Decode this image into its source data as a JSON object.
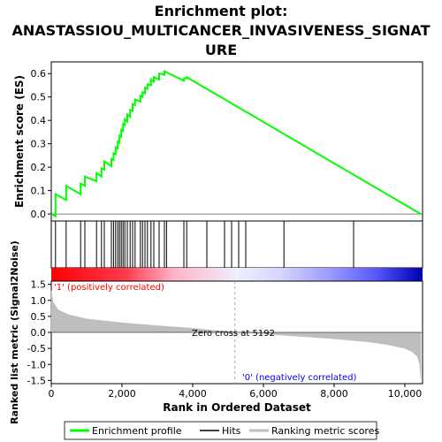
{
  "title_line1": "Enrichment plot:",
  "title_line2": "ANASTASSIOU_MULTICANCER_INVASIVENESS_SIGNAT",
  "title_line3": "URE",
  "colors": {
    "enrichment": "#00ff00",
    "hits": "#000000",
    "metric": "#bebebe",
    "positive_text": "#ff0000",
    "negative_text": "#0000ff"
  },
  "chart_data": {
    "type": "line",
    "es_panel": {
      "ylabel": "Enrichment score (ES)",
      "ylim": [
        -0.03,
        0.65
      ],
      "yticks": [
        0.0,
        0.1,
        0.2,
        0.3,
        0.4,
        0.5,
        0.6
      ],
      "ytick_labels": [
        "0.0",
        "0.1",
        "0.2",
        "0.3",
        "0.4",
        "0.5",
        "0.6"
      ],
      "xlim": [
        0,
        10500
      ],
      "series": [
        {
          "name": "Enrichment profile",
          "x": [
            0,
            120,
            121,
            420,
            421,
            830,
            831,
            950,
            951,
            1280,
            1281,
            1420,
            1421,
            1500,
            1501,
            1700,
            1701,
            1760,
            1761,
            1820,
            1821,
            1880,
            1881,
            1930,
            1931,
            1980,
            1981,
            2030,
            2031,
            2080,
            2081,
            2150,
            2151,
            2230,
            2231,
            2300,
            2301,
            2370,
            2371,
            2520,
            2521,
            2580,
            2581,
            2650,
            2651,
            2720,
            2721,
            2820,
            2821,
            2900,
            2901,
            3050,
            3051,
            3200,
            3201,
            3260,
            3261,
            3750,
            3751,
            3830,
            3831,
            10450
          ],
          "y": [
            0.0,
            -0.01,
            0.085,
            0.06,
            0.12,
            0.085,
            0.13,
            0.12,
            0.16,
            0.14,
            0.175,
            0.16,
            0.195,
            0.19,
            0.225,
            0.205,
            0.235,
            0.23,
            0.26,
            0.255,
            0.285,
            0.28,
            0.31,
            0.305,
            0.335,
            0.33,
            0.36,
            0.355,
            0.385,
            0.38,
            0.405,
            0.395,
            0.425,
            0.415,
            0.445,
            0.44,
            0.47,
            0.465,
            0.49,
            0.48,
            0.505,
            0.5,
            0.52,
            0.515,
            0.54,
            0.535,
            0.555,
            0.55,
            0.575,
            0.565,
            0.585,
            0.575,
            0.6,
            0.595,
            0.61,
            0.605,
            0.605,
            0.57,
            0.58,
            0.58,
            0.585,
            0.0
          ]
        }
      ]
    },
    "hits": [
      120,
      420,
      830,
      950,
      1280,
      1420,
      1500,
      1700,
      1760,
      1820,
      1880,
      1930,
      1980,
      2030,
      2080,
      2150,
      2230,
      2300,
      2370,
      2520,
      2580,
      2650,
      2720,
      2820,
      2900,
      3050,
      3200,
      3260,
      3750,
      3830,
      4400,
      4900,
      5100,
      5300,
      5500,
      6580,
      8550
    ],
    "metric_panel": {
      "ylabel": "Ranked list metric (Signal2Noise)",
      "xlabel": "Rank in Ordered Dataset",
      "ylim": [
        -1.6,
        1.6
      ],
      "yticks": [
        -1.5,
        -1.0,
        -0.5,
        0.0,
        0.5,
        1.0,
        1.5
      ],
      "ytick_labels": [
        "-1.5",
        "-1.0",
        "-0.5",
        "0.0",
        "0.5",
        "1.0",
        "1.5"
      ],
      "xticks": [
        0,
        2000,
        4000,
        6000,
        8000,
        10000
      ],
      "xtick_labels": [
        "0",
        "2,000",
        "4,000",
        "6,000",
        "8,000",
        "10,000"
      ],
      "zero_cross_label": "Zero cross at 5192",
      "zero_cross": 5192,
      "positive_label": "'1' (positively correlated)",
      "negative_label": "'0' (negatively correlated)",
      "n": 10450,
      "profile_x": [
        0,
        50,
        200,
        500,
        1000,
        2000,
        3000,
        4000,
        5192,
        6000,
        7000,
        8000,
        9000,
        9500,
        10000,
        10200,
        10350,
        10420,
        10450
      ],
      "profile_y": [
        1.3,
        0.95,
        0.7,
        0.55,
        0.42,
        0.3,
        0.21,
        0.13,
        0.0,
        -0.05,
        -0.12,
        -0.2,
        -0.3,
        -0.38,
        -0.5,
        -0.6,
        -0.75,
        -1.0,
        -1.45
      ]
    }
  },
  "legend": {
    "items": [
      {
        "label": "Enrichment profile"
      },
      {
        "label": "Hits"
      },
      {
        "label": "Ranking metric scores"
      }
    ]
  }
}
